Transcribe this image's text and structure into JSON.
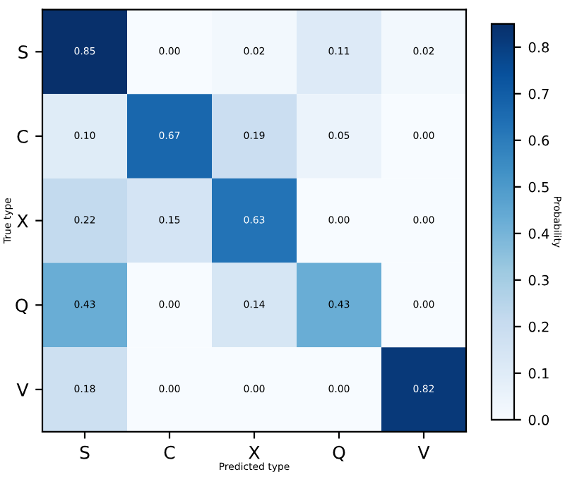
{
  "chart_data": {
    "type": "heatmap",
    "xlabel": "Predicted type",
    "ylabel": "True type",
    "clabel": "Probability",
    "categories": [
      "S",
      "C",
      "X",
      "Q",
      "V"
    ],
    "y_categories": [
      "S",
      "C",
      "X",
      "Q",
      "V"
    ],
    "cells": [
      [
        0.85,
        0.0,
        0.02,
        0.11,
        0.02
      ],
      [
        0.1,
        0.67,
        0.19,
        0.05,
        0.0
      ],
      [
        0.22,
        0.15,
        0.63,
        0.0,
        0.0
      ],
      [
        0.43,
        0.0,
        0.14,
        0.43,
        0.0
      ],
      [
        0.18,
        0.0,
        0.0,
        0.0,
        0.82
      ]
    ],
    "cell_labels": [
      [
        "0.85",
        "0.00",
        "0.02",
        "0.11",
        "0.02"
      ],
      [
        "0.10",
        "0.67",
        "0.19",
        "0.05",
        "0.00"
      ],
      [
        "0.22",
        "0.15",
        "0.63",
        "0.00",
        "0.00"
      ],
      [
        "0.43",
        "0.00",
        "0.14",
        "0.43",
        "0.00"
      ],
      [
        "0.18",
        "0.00",
        "0.00",
        "0.00",
        "0.82"
      ]
    ],
    "clim": [
      0,
      0.85
    ],
    "cticks": [
      {
        "value": 0,
        "label": "0.0"
      },
      0.1,
      0.2,
      0.3,
      0.4,
      0.5,
      0.6,
      0.7,
      0.8
    ],
    "data_labels": true,
    "grid": false
  }
}
